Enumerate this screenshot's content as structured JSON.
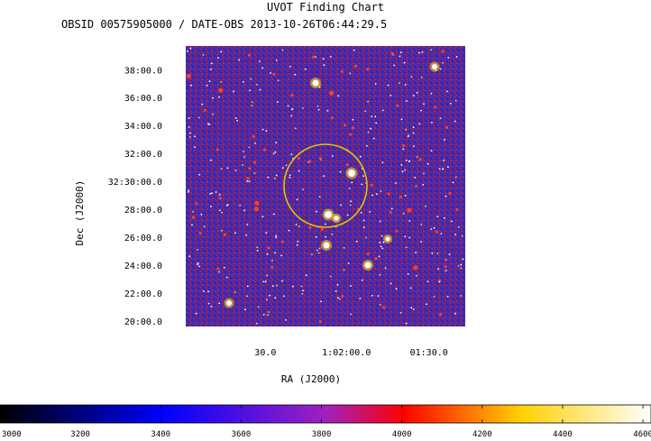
{
  "header": {
    "title": "UVOT Finding Chart",
    "subtitle": "OBSID 00575905000 / DATE-OBS 2013-10-26T06:44:29.5"
  },
  "chart_data": {
    "type": "heatmap",
    "title": "UVOT Finding Chart",
    "subtitle": "OBSID 00575905000 / DATE-OBS 2013-10-26T06:44:29.5",
    "xlabel": "RA (J2000)",
    "ylabel": "Dec (J2000)",
    "x_ticks": [
      "30.0",
      "1:02:00.0",
      "01:30.0"
    ],
    "y_ticks": [
      "38:00.0",
      "36:00.0",
      "34:00.0",
      "32:00.0",
      "32:30:00.0",
      "28:00.0",
      "26:00.0",
      "24:00.0",
      "22:00.0",
      "20:00.0"
    ],
    "y_tick_values_arcmin": [
      38,
      36,
      34,
      32,
      30,
      28,
      26,
      24,
      22,
      20
    ],
    "ylim_arcmin": [
      19.6,
      39.7
    ],
    "x_tick_positions_frac": [
      0.285,
      0.575,
      0.87
    ],
    "colorbar": {
      "ticks": [
        3000,
        3200,
        3400,
        3600,
        3800,
        4000,
        4200,
        4400,
        4600
      ],
      "range": [
        3000,
        4620
      ],
      "colors": [
        "#000000",
        "#0000ff",
        "#ff0000",
        "#ffff00",
        "#ffffff"
      ]
    },
    "source_circle": {
      "color": "#e0c400"
    },
    "background_color": "#4a2fa8"
  }
}
